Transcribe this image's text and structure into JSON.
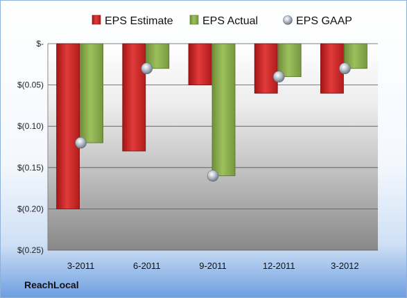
{
  "chart_data": {
    "type": "bar",
    "categories": [
      "3-2011",
      "6-2011",
      "9-2011",
      "12-2011",
      "3-2012"
    ],
    "series": [
      {
        "name": "EPS Estimate",
        "values": [
          -0.2,
          -0.13,
          -0.05,
          -0.06,
          -0.06
        ],
        "color": "#d42a2a"
      },
      {
        "name": "EPS Actual",
        "values": [
          -0.12,
          -0.03,
          -0.16,
          -0.04,
          -0.03
        ],
        "color": "#8db150"
      },
      {
        "name": "EPS GAAP",
        "values": [
          -0.12,
          -0.03,
          -0.16,
          -0.04,
          -0.03
        ],
        "color": "#a9b4c0",
        "marker": "sphere"
      }
    ],
    "ylim": [
      -0.25,
      0
    ],
    "yticks": [
      0,
      -0.05,
      -0.1,
      -0.15,
      -0.2,
      -0.25
    ],
    "ytick_labels": [
      "$-",
      "$(0.05)",
      "$(0.10)",
      "$(0.15)",
      "$(0.20)",
      "$(0.25)"
    ],
    "legend_position": "top",
    "grid": true
  },
  "footer": {
    "company": "ReachLocal"
  }
}
